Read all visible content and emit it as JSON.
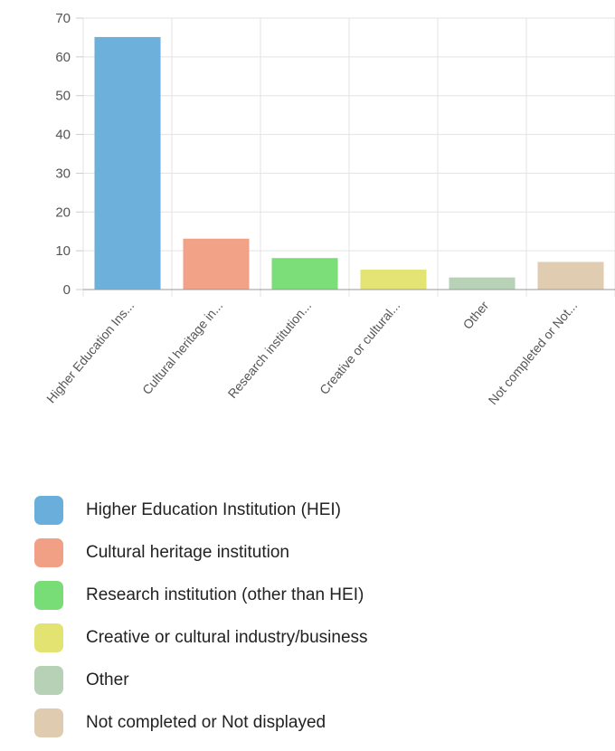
{
  "chart_data": {
    "type": "bar",
    "categories": [
      "Higher Education Institution (HEI)",
      "Cultural heritage institution",
      "Research institution (other than HEI)",
      "Creative or cultural industry/business",
      "Other",
      "Not completed or Not displayed"
    ],
    "tick_labels": [
      "Higher Education Ins...",
      "Cultural heritage in...",
      "Research institution...",
      "Creative or cultural...",
      "Other",
      "Not completed or Not..."
    ],
    "values": [
      65,
      13,
      8,
      5,
      3,
      7
    ],
    "ylim": [
      0,
      70
    ],
    "yticks": [
      0,
      10,
      20,
      30,
      40,
      50,
      60,
      70
    ],
    "colors": [
      "#6aaedb",
      "#f1a085",
      "#78dd76",
      "#e2e371",
      "#b6d1b5",
      "#dfcbaf"
    ],
    "grid": true,
    "legend_position": "bottom"
  },
  "legend": {
    "items": [
      {
        "label": "Higher Education Institution (HEI)",
        "color": "#6aaedb"
      },
      {
        "label": "Cultural heritage institution",
        "color": "#f1a085"
      },
      {
        "label": "Research institution (other than HEI)",
        "color": "#78dd76"
      },
      {
        "label": "Creative or cultural industry/business",
        "color": "#e2e371"
      },
      {
        "label": "Other",
        "color": "#b6d1b5"
      },
      {
        "label": "Not completed or Not displayed",
        "color": "#dfcbaf"
      }
    ]
  }
}
